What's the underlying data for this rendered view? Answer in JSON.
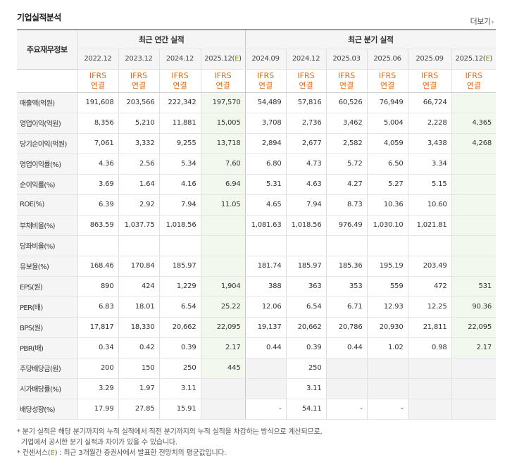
{
  "title": "기업실적분석",
  "more_label": "더보기",
  "more_icon": "chevron-right-icon",
  "header": {
    "row_label": "주요재무정보",
    "annual_group": "최근 연간 실적",
    "quarter_group": "최근 분기 실적",
    "periods": [
      "2022.12",
      "2023.12",
      "2024.12",
      "2025.12(E)",
      "2024.09",
      "2024.12",
      "2025.03",
      "2025.06",
      "2025.09",
      "2025.12(E)"
    ],
    "basis_top": "IFRS",
    "basis_bottom": "연결"
  },
  "rows": [
    {
      "label": "매출액(억원)",
      "values": [
        "191,608",
        "203,566",
        "222,342",
        "197,570",
        "54,489",
        "57,816",
        "60,526",
        "76,949",
        "66,724",
        ""
      ]
    },
    {
      "label": "영업이익(억원)",
      "values": [
        "8,356",
        "5,210",
        "11,881",
        "15,005",
        "3,708",
        "2,736",
        "3,462",
        "5,004",
        "2,228",
        "4,365"
      ]
    },
    {
      "label": "당기순이익(억원)",
      "values": [
        "7,061",
        "3,332",
        "9,255",
        "13,718",
        "2,894",
        "2,677",
        "2,582",
        "4,059",
        "3,438",
        "4,268"
      ]
    },
    {
      "label": "영업이익률(%)",
      "values": [
        "4.36",
        "2.56",
        "5.34",
        "7.60",
        "6.80",
        "4.73",
        "5.72",
        "6.50",
        "3.34",
        ""
      ]
    },
    {
      "label": "순이익률(%)",
      "values": [
        "3.69",
        "1.64",
        "4.16",
        "6.94",
        "5.31",
        "4.63",
        "4.27",
        "5.27",
        "5.15",
        ""
      ]
    },
    {
      "label": "ROE(%)",
      "values": [
        "6.39",
        "2.92",
        "7.94",
        "11.05",
        "4.65",
        "7.94",
        "8.73",
        "10.36",
        "10.60",
        ""
      ]
    },
    {
      "label": "부채비율(%)",
      "values": [
        "863.59",
        "1,037.75",
        "1,018.56",
        "",
        "1,081.63",
        "1,018.56",
        "976.49",
        "1,030.10",
        "1,021.81",
        ""
      ]
    },
    {
      "label": "당좌비율(%)",
      "values": [
        "",
        "",
        "",
        "",
        "",
        "",
        "",
        "",
        "",
        ""
      ]
    },
    {
      "label": "유보율(%)",
      "values": [
        "168.46",
        "170.84",
        "185.97",
        "",
        "181.74",
        "185.97",
        "185.36",
        "195.19",
        "203.49",
        ""
      ]
    },
    {
      "label": "EPS(원)",
      "values": [
        "890",
        "424",
        "1,229",
        "1,904",
        "388",
        "363",
        "353",
        "559",
        "472",
        "531"
      ]
    },
    {
      "label": "PER(배)",
      "values": [
        "6.83",
        "18.01",
        "6.54",
        "25.22",
        "12.06",
        "6.54",
        "6.71",
        "12.93",
        "12.25",
        "90.36"
      ]
    },
    {
      "label": "BPS(원)",
      "values": [
        "17,817",
        "18,330",
        "20,662",
        "22,095",
        "19,137",
        "20,662",
        "20,786",
        "20,930",
        "21,811",
        "22,095"
      ]
    },
    {
      "label": "PBR(배)",
      "values": [
        "0.34",
        "0.42",
        "0.39",
        "2.17",
        "0.44",
        "0.39",
        "0.44",
        "1.02",
        "0.98",
        "2.17"
      ]
    },
    {
      "label": "주당배당금(원)",
      "values": [
        "200",
        "150",
        "250",
        "445",
        "",
        "250",
        "",
        "",
        "",
        ""
      ]
    },
    {
      "label": "시가배당률(%)",
      "values": [
        "3.29",
        "1.97",
        "3.11",
        "",
        "",
        "3.11",
        "",
        "",
        "",
        ""
      ]
    },
    {
      "label": "배당성향(%)",
      "values": [
        "17.99",
        "27.85",
        "15.91",
        "",
        "-",
        "54.11",
        "-",
        "-",
        "",
        ""
      ]
    }
  ],
  "notes": {
    "line1": "* 분기 실적은 해당 분기까지의 누적 실적에서 직전 분기까지의 누적 실적을 차감하는 방식으로 계산되므로,",
    "line2": "기업에서 공시한 분기 실적과 차이가 있을 수 있습니다.",
    "line3_prefix": "* 컨센서스(",
    "line3_em": "E",
    "line3_suffix": ") : 최근 3개월간 증권사에서 발표한 전망치의 평균값입니다."
  },
  "colors": {
    "ifrs_orange": "#e8670a",
    "estimate_green": "#7aa22a",
    "estimate_bg": "#f2f8ee"
  }
}
